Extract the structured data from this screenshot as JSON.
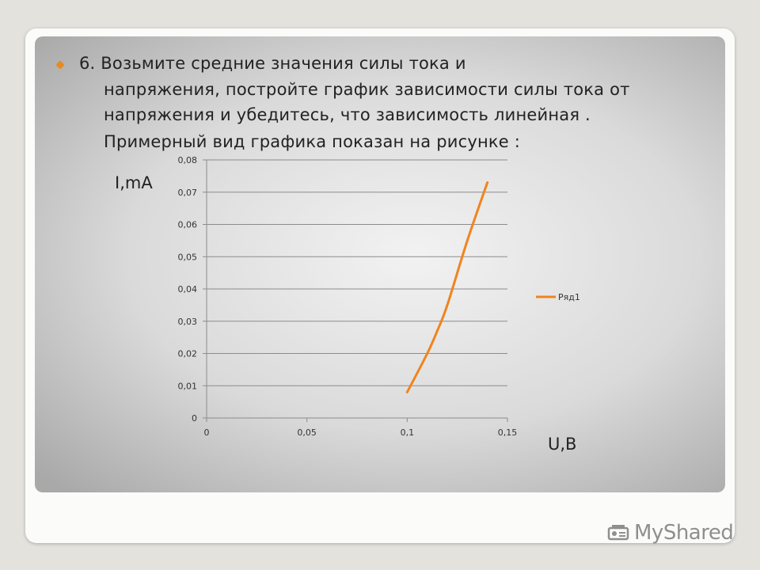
{
  "slide": {
    "lines": [
      "6. Возьмите средние значения силы тока и",
      "напряжения,  постройте  график зависимости силы тока от",
      "напряжения  и убедитесь, что зависимость линейная .",
      "Примерный вид графика показан на рисунке :"
    ]
  },
  "watermark": {
    "text": "MyShared",
    "icon": "projector-icon"
  },
  "colors": {
    "series": "#f0841f",
    "bullet": "#e98a1f",
    "grid": "#8c8c8c"
  },
  "chart_data": {
    "type": "line",
    "title": "",
    "xlabel": "U,B",
    "ylabel": "I,mA",
    "xlim": [
      0,
      0.15
    ],
    "ylim": [
      0,
      0.08
    ],
    "x_ticks": [
      "0",
      "0,05",
      "0,1",
      "0,15"
    ],
    "y_ticks": [
      "0",
      "0,01",
      "0,02",
      "0,03",
      "0,04",
      "0,05",
      "0,06",
      "0,07",
      "0,08"
    ],
    "grid": "horizontal",
    "legend": "right",
    "series": [
      {
        "name": "Ряд1",
        "x": [
          0.1,
          0.11,
          0.115,
          0.12,
          0.13,
          0.14
        ],
        "y": [
          0.008,
          0.02,
          0.027,
          0.035,
          0.055,
          0.073
        ]
      }
    ]
  }
}
